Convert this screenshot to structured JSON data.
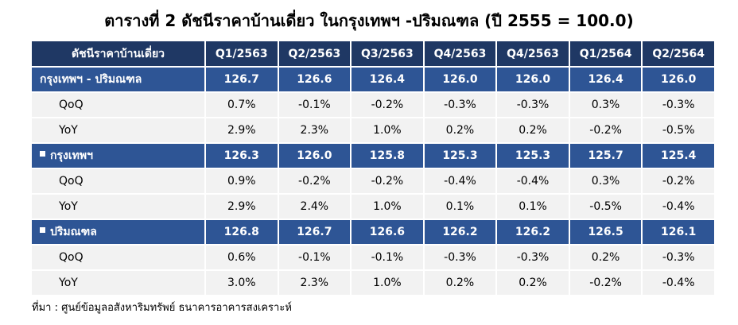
{
  "title": "ตารางที่ 2 ดัชนีราคาบ้านเดี่ยว ในกรุงเทพฯ -ปริมณฑล (ปี 2555 = 100.0)",
  "header": {
    "label": "ดัชนีราคาบ้านเดี่ยว",
    "periods": [
      "Q1/2563",
      "Q2/2563",
      "Q3/2563",
      "Q4/2563",
      "Q4/2563",
      "Q1/2564",
      "Q2/2564"
    ]
  },
  "groups": [
    {
      "label": "กรุงเทพฯ - ปริมณฑล",
      "bullet": false,
      "values": [
        "126.7",
        "126.6",
        "126.4",
        "126.0",
        "126.0",
        "126.4",
        "126.0"
      ],
      "qoq_label": "QoQ",
      "qoq": [
        "0.7%",
        "-0.1%",
        "-0.2%",
        "-0.3%",
        "-0.3%",
        "0.3%",
        "-0.3%"
      ],
      "yoy_label": "YoY",
      "yoy": [
        "2.9%",
        "2.3%",
        "1.0%",
        "0.2%",
        "0.2%",
        "-0.2%",
        "-0.5%"
      ]
    },
    {
      "label": "กรุงเทพฯ",
      "bullet": true,
      "values": [
        "126.3",
        "126.0",
        "125.8",
        "125.3",
        "125.3",
        "125.7",
        "125.4"
      ],
      "qoq_label": "QoQ",
      "qoq": [
        "0.9%",
        "-0.2%",
        "-0.2%",
        "-0.4%",
        "-0.4%",
        "0.3%",
        "-0.2%"
      ],
      "yoy_label": "YoY",
      "yoy": [
        "2.9%",
        "2.4%",
        "1.0%",
        "0.1%",
        "0.1%",
        "-0.5%",
        "-0.4%"
      ]
    },
    {
      "label": "ปริมณฑล",
      "bullet": true,
      "values": [
        "126.8",
        "126.7",
        "126.6",
        "126.2",
        "126.2",
        "126.5",
        "126.1"
      ],
      "qoq_label": "QoQ",
      "qoq": [
        "0.6%",
        "-0.1%",
        "-0.1%",
        "-0.3%",
        "-0.3%",
        "0.2%",
        "-0.3%"
      ],
      "yoy_label": "YoY",
      "yoy": [
        "3.0%",
        "2.3%",
        "1.0%",
        "0.2%",
        "0.2%",
        "-0.2%",
        "-0.4%"
      ]
    }
  ],
  "source": "ที่มา : ศูนย์ข้อมูลอสังหาริมทรัพย์ ธนาคารอาคารสงเคราะห์",
  "colors": {
    "header": "#1f3864",
    "group_row": "#2e5595",
    "sub_row": "#f2f2f2",
    "negative": "#e00000"
  }
}
